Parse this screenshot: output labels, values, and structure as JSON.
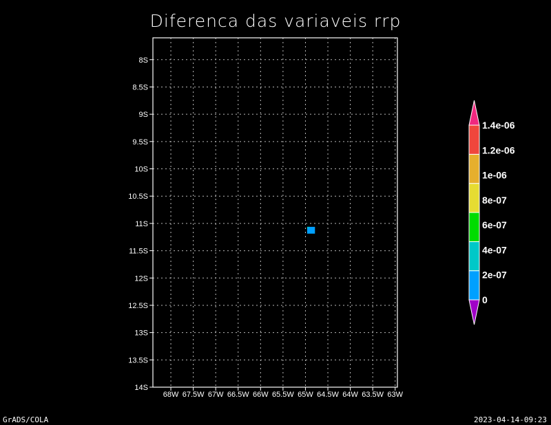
{
  "chart_data": {
    "type": "heatmap",
    "title": "Diferenca das variaveis rrp",
    "xlabel": "",
    "ylabel": "",
    "x_ticks": [
      "68W",
      "67.5W",
      "67W",
      "66.5W",
      "66W",
      "65.5W",
      "65W",
      "64.5W",
      "64W",
      "63.5W",
      "63W"
    ],
    "y_ticks": [
      "8S",
      "8.5S",
      "9S",
      "9.5S",
      "10S",
      "10.5S",
      "11S",
      "11.5S",
      "12S",
      "12.5S",
      "13S",
      "13.5S",
      "14S"
    ],
    "xlim": [
      -68.4,
      -62.95
    ],
    "ylim": [
      -14.0,
      -7.6
    ],
    "grid": true,
    "colorbar": {
      "levels": [
        "0",
        "2e-07",
        "4e-07",
        "6e-07",
        "8e-07",
        "1e-06",
        "1.2e-06",
        "1.4e-06"
      ],
      "colors": [
        "#a000c8",
        "#00a0ff",
        "#00c8c8",
        "#00dc00",
        "#e6dc32",
        "#e6af2d",
        "#f0463c",
        "#f0287f"
      ],
      "placement": "right"
    },
    "cells": [
      {
        "lon": -64.875,
        "lat": -11.125,
        "value": 3e-07,
        "color": "#00a0ff"
      }
    ]
  },
  "footer": {
    "left": "GrADS/COLA",
    "right": "2023-04-14-09:23"
  }
}
